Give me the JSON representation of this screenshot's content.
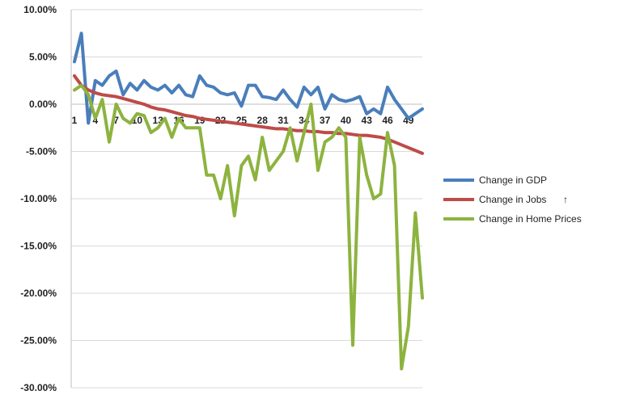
{
  "chart_data": {
    "type": "line",
    "title": "",
    "xlabel": "",
    "ylabel": "",
    "ylim": [
      -30,
      10
    ],
    "yticks": [
      10,
      5,
      0,
      -5,
      -10,
      -15,
      -20,
      -25,
      -30
    ],
    "ytick_labels": [
      "10.00%",
      "5.00%",
      "0.00%",
      "-5.00%",
      "-10.00%",
      "-15.00%",
      "-20.00%",
      "-25.00%",
      "-30.00%"
    ],
    "x": [
      1,
      2,
      3,
      4,
      5,
      6,
      7,
      8,
      9,
      10,
      11,
      12,
      13,
      14,
      15,
      16,
      17,
      18,
      19,
      20,
      21,
      22,
      23,
      24,
      25,
      26,
      27,
      28,
      29,
      30,
      31,
      32,
      33,
      34,
      35,
      36,
      37,
      38,
      39,
      40,
      41,
      42,
      43,
      44,
      45,
      46,
      47,
      48,
      49,
      50,
      51
    ],
    "xtick_labels": [
      "1",
      "4",
      "7",
      "10",
      "13",
      "16",
      "19",
      "22",
      "25",
      "28",
      "31",
      "34",
      "37",
      "40",
      "43",
      "46",
      "49"
    ],
    "xtick_positions": [
      1,
      4,
      7,
      10,
      13,
      16,
      19,
      22,
      25,
      28,
      31,
      34,
      37,
      40,
      43,
      46,
      49
    ],
    "grid": "horizontal",
    "legend_position": "right",
    "series": [
      {
        "name": "Change in GDP",
        "color": "#4a7ebb",
        "values": [
          4.5,
          7.5,
          -2.0,
          2.5,
          2.0,
          3.0,
          3.5,
          1.0,
          2.2,
          1.5,
          2.5,
          1.8,
          1.5,
          2.0,
          1.2,
          2.0,
          1.0,
          0.8,
          3.0,
          2.0,
          1.8,
          1.2,
          1.0,
          1.2,
          -0.2,
          2.0,
          2.0,
          0.8,
          0.7,
          0.5,
          1.5,
          0.5,
          -0.3,
          1.8,
          1.0,
          1.8,
          -0.5,
          1.0,
          0.5,
          0.3,
          0.5,
          0.8,
          -1.0,
          -0.5,
          -1.0,
          1.8,
          0.5,
          -0.5,
          -1.5,
          -1.0,
          -0.5
        ]
      },
      {
        "name": "Change in Jobs",
        "color": "#be4b48",
        "values": [
          3.0,
          2.0,
          1.5,
          1.2,
          1.0,
          0.9,
          0.8,
          0.6,
          0.4,
          0.2,
          0.0,
          -0.3,
          -0.5,
          -0.6,
          -0.8,
          -1.0,
          -1.2,
          -1.3,
          -1.5,
          -1.6,
          -1.7,
          -1.8,
          -1.9,
          -2.0,
          -2.1,
          -2.2,
          -2.3,
          -2.4,
          -2.5,
          -2.6,
          -2.6,
          -2.7,
          -2.8,
          -2.8,
          -2.9,
          -2.9,
          -3.0,
          -3.0,
          -3.1,
          -3.1,
          -3.2,
          -3.3,
          -3.3,
          -3.4,
          -3.5,
          -3.7,
          -4.0,
          -4.3,
          -4.6,
          -4.9,
          -5.2
        ]
      },
      {
        "name": "Change in Home Prices",
        "color": "#8db33f",
        "values": [
          1.5,
          2.0,
          1.0,
          -1.5,
          0.5,
          -4.0,
          0.0,
          -1.5,
          -2.0,
          -1.0,
          -1.2,
          -3.0,
          -2.5,
          -1.5,
          -3.5,
          -1.5,
          -2.5,
          -2.5,
          -2.5,
          -7.5,
          -7.5,
          -10.0,
          -6.5,
          -11.8,
          -6.5,
          -5.5,
          -8.0,
          -3.5,
          -7.0,
          -6.0,
          -5.0,
          -2.5,
          -6.0,
          -3.0,
          0.0,
          -7.0,
          -4.0,
          -3.5,
          -2.5,
          -3.5,
          -25.5,
          -3.5,
          -7.5,
          -10.0,
          -9.5,
          -3.0,
          -6.5,
          -28.0,
          -23.5,
          -11.5,
          -20.5
        ]
      }
    ],
    "legend_marker_glyph": "↑"
  }
}
